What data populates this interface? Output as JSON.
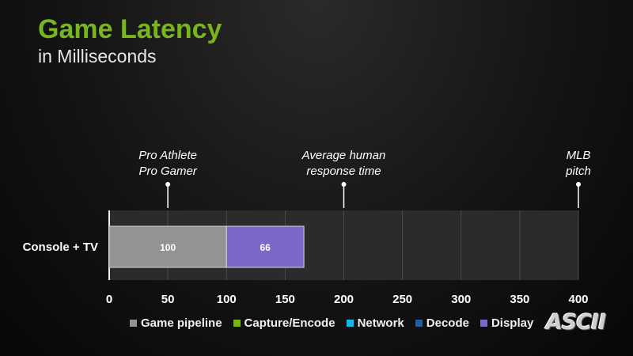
{
  "header": {
    "title": "Game Latency",
    "subtitle": "in Milliseconds"
  },
  "colors": {
    "title": "#79b51e",
    "plot_bg": "#2b2b2b",
    "grid": "#4a4a4a"
  },
  "chart_data": {
    "type": "bar",
    "orientation": "horizontal",
    "stacked": true,
    "categories": [
      "Console + TV"
    ],
    "series": [
      {
        "name": "Game pipeline",
        "color": "#939393",
        "values": [
          100
        ]
      },
      {
        "name": "Capture/Encode",
        "color": "#76b900",
        "values": [
          0
        ]
      },
      {
        "name": "Network",
        "color": "#19b5e6",
        "values": [
          0
        ]
      },
      {
        "name": "Decode",
        "color": "#1a5fa8",
        "values": [
          0
        ]
      },
      {
        "name": "Display",
        "color": "#7b68c8",
        "values": [
          66
        ]
      }
    ],
    "data_labels": [
      "100",
      "66"
    ],
    "xlim": [
      0,
      400
    ],
    "xticks": [
      "0",
      "50",
      "100",
      "150",
      "200",
      "250",
      "300",
      "350",
      "400"
    ],
    "grid": true,
    "legend_position": "bottom",
    "annotations": [
      {
        "x": 50,
        "lines": [
          "Pro Athlete",
          "Pro Gamer"
        ]
      },
      {
        "x": 200,
        "lines": [
          "Average human",
          "response time"
        ]
      },
      {
        "x": 400,
        "lines": [
          "MLB",
          "pitch"
        ]
      }
    ]
  },
  "watermark": "ASCII"
}
